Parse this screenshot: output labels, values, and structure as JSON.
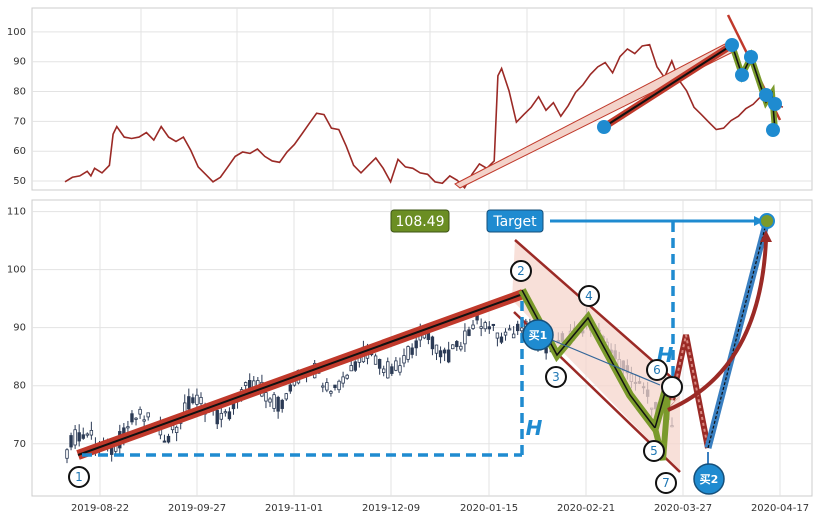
{
  "chart_data": [
    {
      "type": "line",
      "panel": "top",
      "ylim": [
        47,
        108
      ],
      "yticks": [
        50,
        60,
        70,
        80,
        90,
        100
      ],
      "grid": true,
      "colors": {
        "line": "#9b2a26",
        "fill_arrow": "#f3d2c9",
        "trend": "#c0392b",
        "dot": "#1f8bd0",
        "green": "#7a9a2b"
      },
      "series": [
        {
          "x": [
            0,
            0.01,
            0.02,
            0.03,
            0.035,
            0.04,
            0.05,
            0.06,
            0.065,
            0.07,
            0.08,
            0.09,
            0.1,
            0.11,
            0.12,
            0.13,
            0.14,
            0.15,
            0.16,
            0.17,
            0.18,
            0.19,
            0.2,
            0.21,
            0.22,
            0.23,
            0.24,
            0.25,
            0.26,
            0.27,
            0.28,
            0.29,
            0.3,
            0.31,
            0.32,
            0.33,
            0.34,
            0.35,
            0.36,
            0.37,
            0.38,
            0.39,
            0.4,
            0.41,
            0.42,
            0.43,
            0.44,
            0.45,
            0.46,
            0.47,
            0.48,
            0.49,
            0.5,
            0.51,
            0.52,
            0.53,
            0.54,
            0.55,
            0.56,
            0.57,
            0.58,
            0.585,
            0.59,
            0.6,
            0.61,
            0.62,
            0.63,
            0.64,
            0.65,
            0.66,
            0.67,
            0.68,
            0.69,
            0.7,
            0.71,
            0.72,
            0.73,
            0.74,
            0.75,
            0.76,
            0.77,
            0.78,
            0.79,
            0.8,
            0.81,
            0.82,
            0.83,
            0.84,
            0.85,
            0.86,
            0.87,
            0.88,
            0.89,
            0.9,
            0.91,
            0.92,
            0.93,
            0.94,
            0.95,
            0.96,
            0.97
          ],
          "y": [
            50,
            51,
            52,
            53,
            52,
            54,
            53,
            55,
            66,
            68,
            65,
            64,
            65,
            66,
            64,
            68,
            65,
            63,
            65,
            60,
            55,
            52,
            50,
            51,
            55,
            58,
            60,
            59,
            61,
            58,
            57,
            56,
            60,
            62,
            66,
            69,
            73,
            72,
            68,
            67,
            62,
            55,
            53,
            55,
            58,
            54,
            50,
            57,
            55,
            54,
            53,
            52,
            50,
            49,
            52,
            50,
            48,
            52,
            56,
            54,
            57,
            85,
            88,
            80,
            70,
            72,
            75,
            78,
            74,
            76,
            72,
            75,
            80,
            82,
            86,
            88,
            90,
            86,
            92,
            94,
            93,
            95,
            96,
            88,
            85,
            90,
            84,
            80,
            75,
            72,
            70,
            67,
            68,
            70,
            72,
            74,
            76,
            78,
            77,
            76,
            75
          ]
        }
      ]
    },
    {
      "type": "candlestick",
      "panel": "bottom",
      "ylim": [
        61,
        112
      ],
      "yticks": [
        70,
        80,
        90,
        100,
        110
      ],
      "xticks": [
        "2019-08-22",
        "2019-09-27",
        "2019-11-01",
        "2019-12-09",
        "2020-01-15",
        "2020-02-21",
        "2020-03-27",
        "2020-04-17"
      ],
      "grid": true,
      "value_box": "108.49",
      "target_label": "Target",
      "h_label": "H",
      "point_labels": [
        "1",
        "2",
        "3",
        "4",
        "5",
        "6",
        "7"
      ],
      "buy_labels": [
        "买1",
        "买2"
      ],
      "colors": {
        "candle": "#2b3a55",
        "trend_red": "#c0392b",
        "trend_black": "#111111",
        "zigzag_green": "#7a9a2b",
        "band": "#f5d5cc",
        "dashed_blue": "#1f8bd0",
        "buy_circle": "#1f8bd0",
        "value_box": "#6b8e23",
        "target_box": "#1f8bd0",
        "arrow_red": "#9b2a26"
      }
    }
  ]
}
